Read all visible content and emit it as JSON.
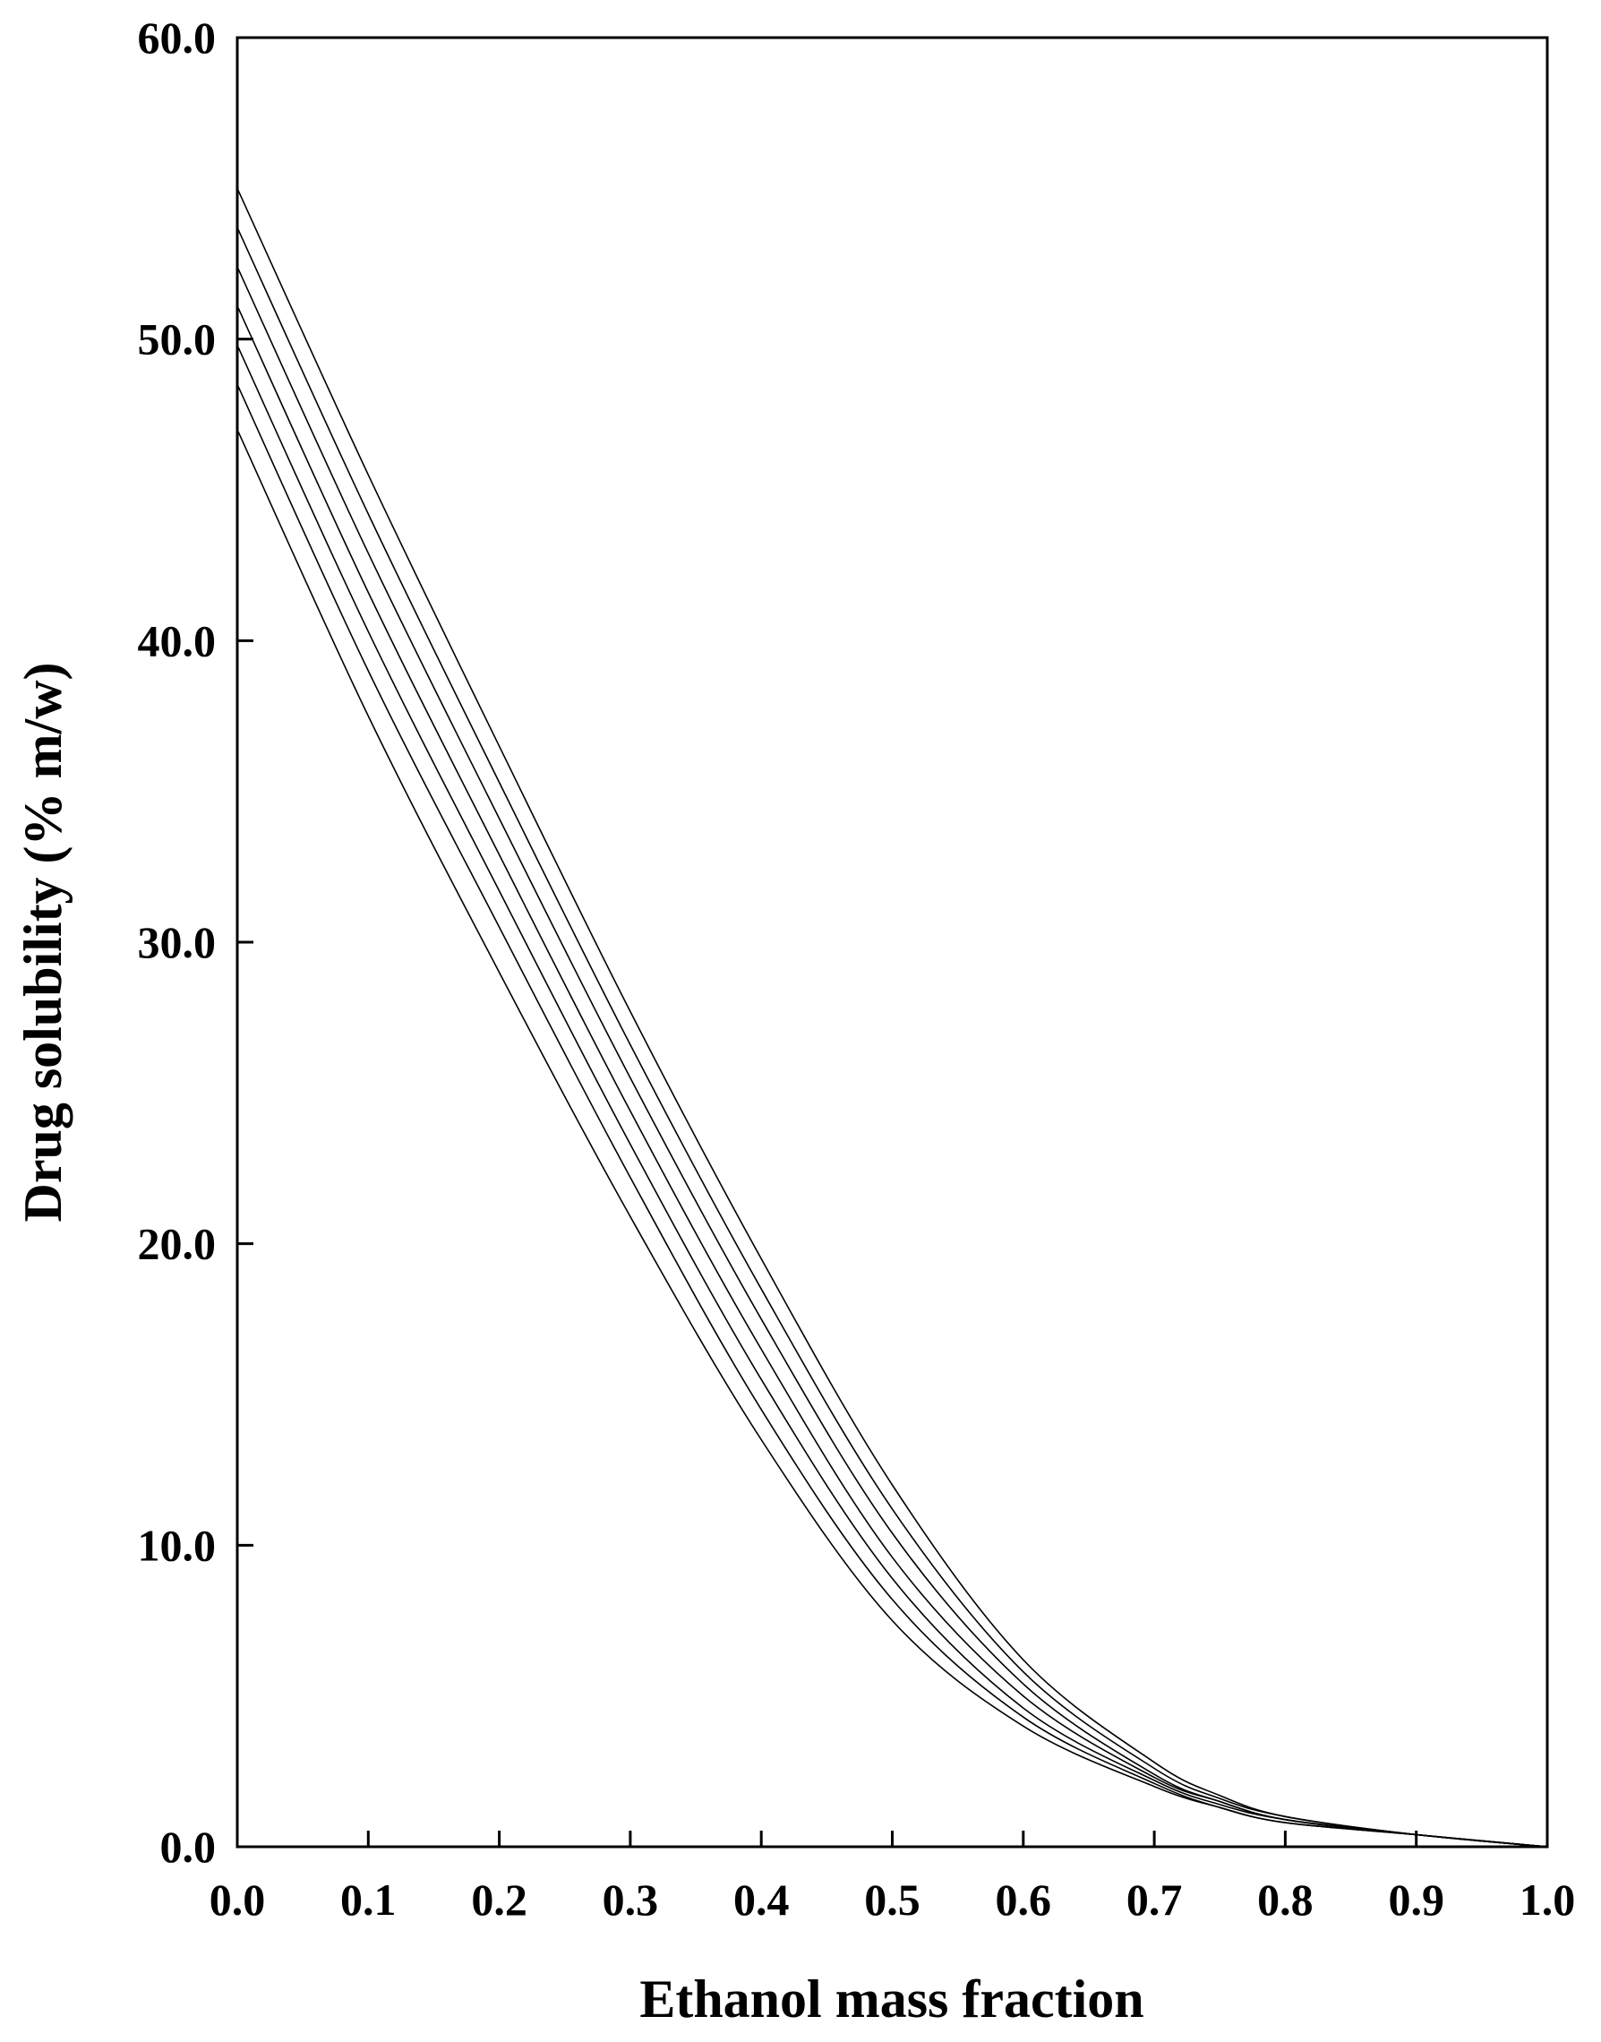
{
  "chart_data": {
    "type": "line",
    "title": "",
    "xlabel": "Ethanol mass fraction",
    "ylabel": "Drug solubility (% m/w)",
    "xlim": [
      0.0,
      1.0
    ],
    "ylim": [
      0.0,
      60.0
    ],
    "xticks": [
      "0.0",
      "0.1",
      "0.2",
      "0.3",
      "0.4",
      "0.5",
      "0.6",
      "0.7",
      "0.8",
      "0.9",
      "1.0"
    ],
    "yticks": [
      "0.0",
      "10.0",
      "20.0",
      "30.0",
      "40.0",
      "50.0",
      "60.0"
    ],
    "grid": false,
    "legend": "none",
    "line_color": "#000000",
    "x": [
      0.0,
      0.1,
      0.2,
      0.3,
      0.4,
      0.5,
      0.6,
      0.7,
      0.75,
      0.8,
      0.9,
      1.0
    ],
    "series": [
      {
        "values": [
          55.0,
          45.5,
          36.5,
          27.7,
          19.5,
          12.0,
          6.2,
          2.8,
          1.7,
          1.0,
          0.4,
          0.0
        ]
      },
      {
        "values": [
          53.7,
          44.2,
          35.3,
          26.6,
          18.5,
          11.2,
          5.8,
          2.6,
          1.6,
          1.0,
          0.4,
          0.0
        ]
      },
      {
        "values": [
          52.4,
          42.9,
          34.1,
          25.5,
          17.5,
          10.4,
          5.4,
          2.4,
          1.5,
          0.9,
          0.4,
          0.0
        ]
      },
      {
        "values": [
          51.1,
          41.6,
          32.9,
          24.4,
          16.5,
          9.6,
          5.0,
          2.3,
          1.5,
          0.9,
          0.4,
          0.0
        ]
      },
      {
        "values": [
          49.8,
          40.3,
          31.7,
          23.3,
          15.5,
          8.9,
          4.6,
          2.2,
          1.4,
          0.9,
          0.4,
          0.0
        ]
      },
      {
        "values": [
          48.5,
          39.0,
          30.5,
          22.2,
          14.5,
          8.2,
          4.3,
          2.1,
          1.3,
          0.8,
          0.4,
          0.0
        ]
      },
      {
        "values": [
          47.0,
          37.5,
          29.0,
          20.9,
          13.5,
          7.5,
          4.0,
          2.0,
          1.3,
          0.8,
          0.4,
          0.0
        ]
      }
    ]
  }
}
